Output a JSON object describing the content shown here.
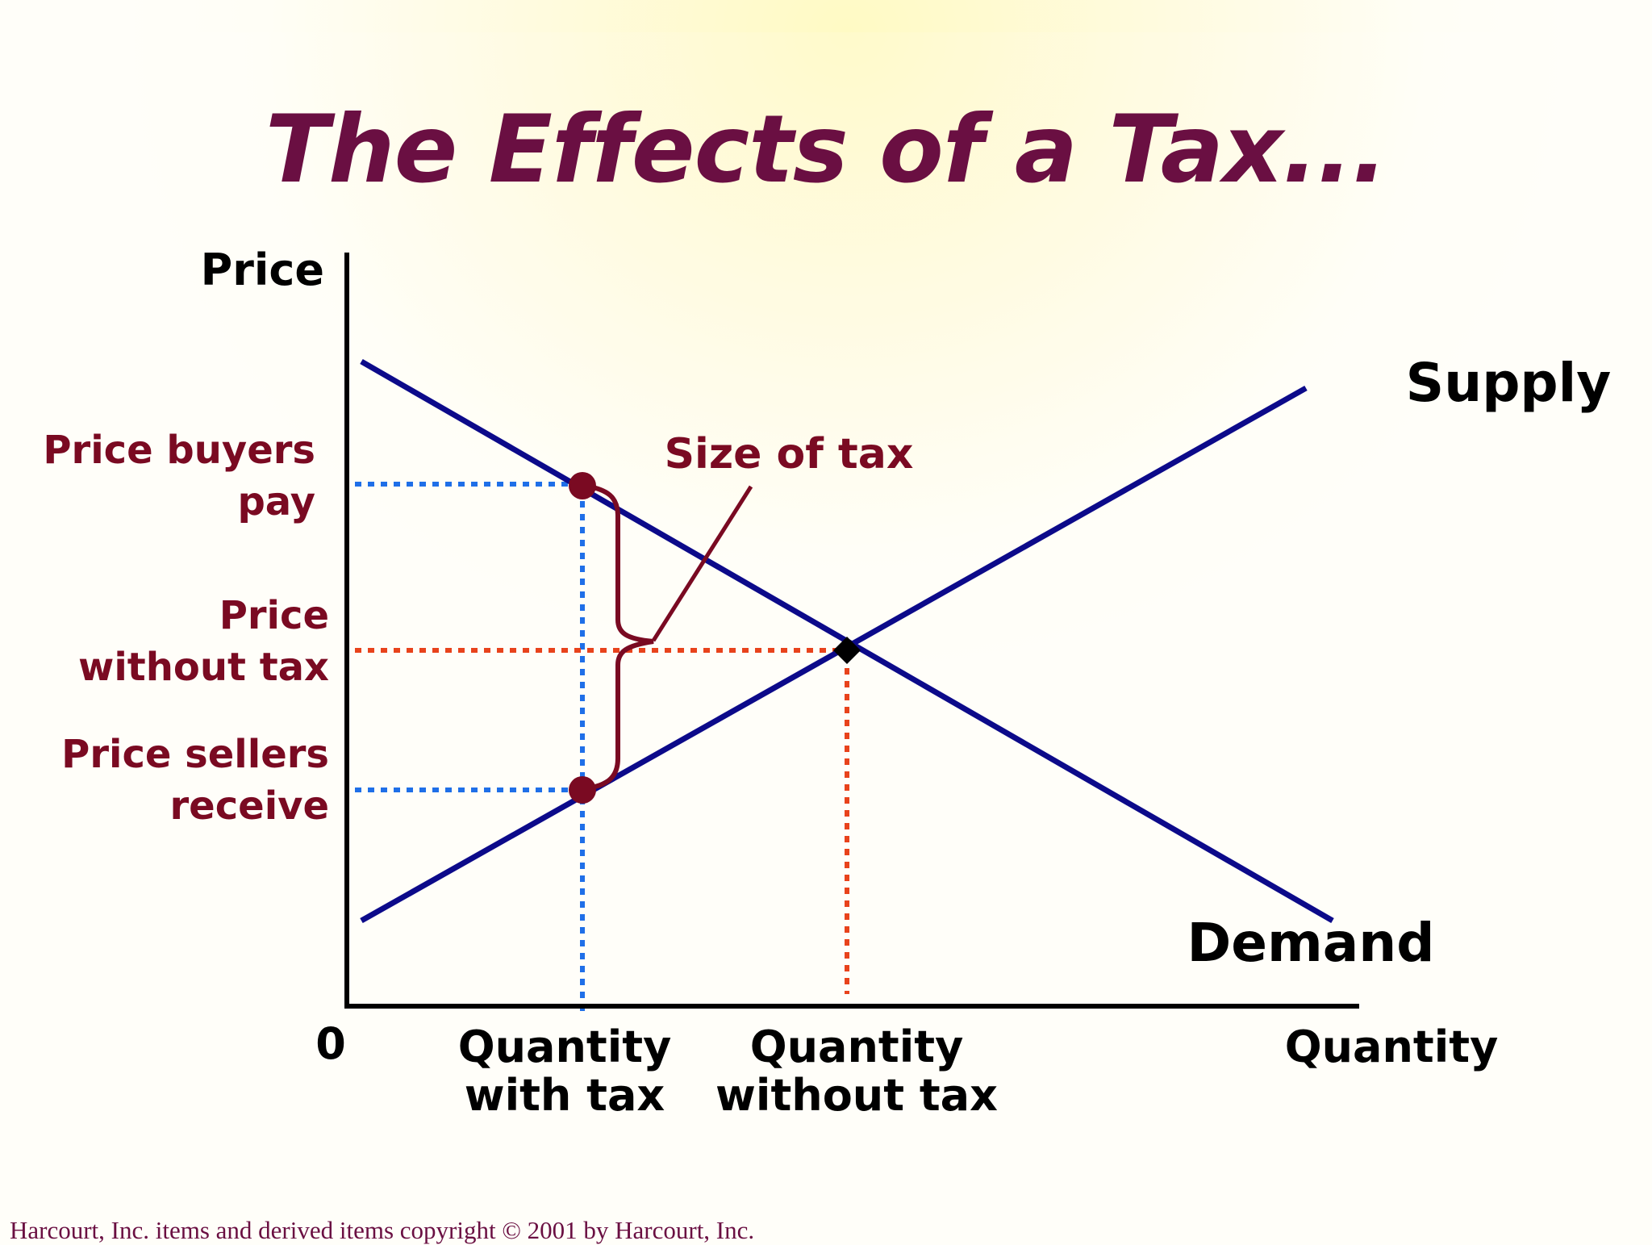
{
  "title": "The Effects of a Tax...",
  "axes": {
    "y_label": "Price",
    "x_label": "Quantity",
    "origin": "0"
  },
  "curves": {
    "supply": "Supply",
    "demand": "Demand"
  },
  "price_labels": {
    "buyers_pay": [
      "Price buyers",
      "pay"
    ],
    "without_tax": [
      "Price",
      "without tax"
    ],
    "sellers_receive": [
      "Price sellers",
      "receive"
    ]
  },
  "quantity_labels": {
    "with_tax": [
      "Quantity",
      "with tax"
    ],
    "without_tax": [
      "Quantity",
      "without tax"
    ]
  },
  "annotation": "Size of tax",
  "footer": "Harcourt, Inc. items and derived items copyright © 2001 by Harcourt, Inc.",
  "colors": {
    "title": "#6a0f42",
    "curve": "#0c0a8a",
    "tax_bracket": "#7a0a22",
    "guide_with_tax": "#1f6fe8",
    "guide_without_tax": "#e8431c",
    "equilibrium_point": "#000000",
    "tax_points": "#7a0a22"
  }
}
